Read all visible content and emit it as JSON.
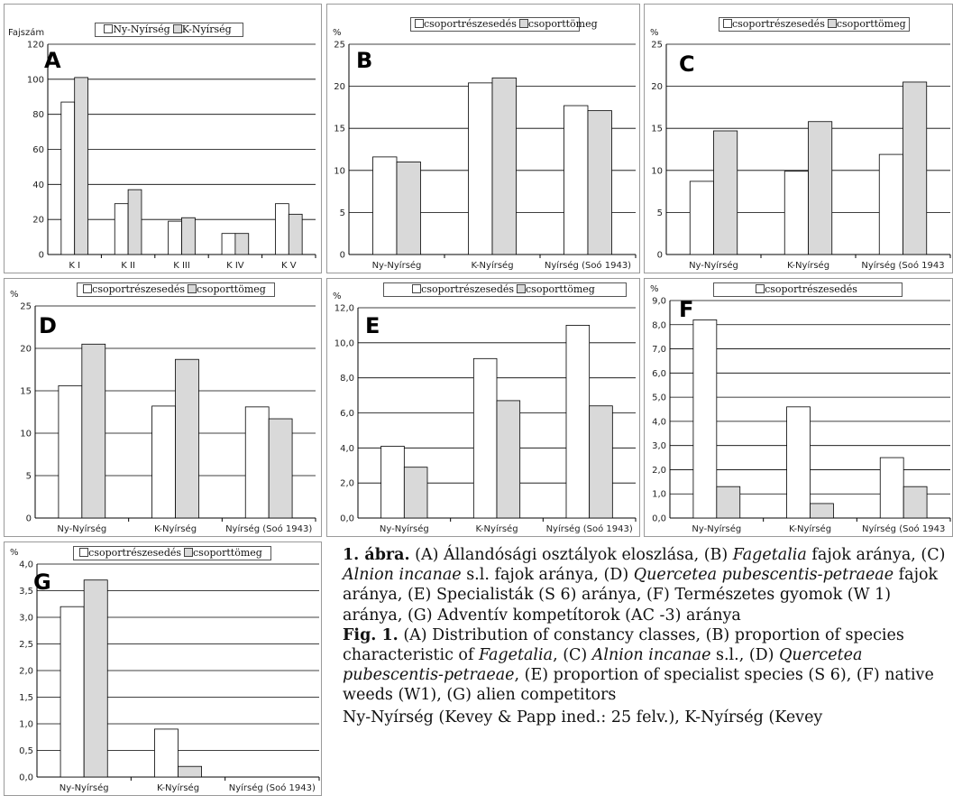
{
  "chart_data": [
    {
      "id": "A",
      "type": "bar",
      "letter": "A",
      "ylabel": "Fajszám",
      "legend": [
        "Ny-Nyírség",
        "K-Nyírség"
      ],
      "categories": [
        "K I",
        "K II",
        "K III",
        "K IV",
        "K V"
      ],
      "series": [
        {
          "name": "Ny-Nyírség",
          "values": [
            87,
            29,
            19,
            12,
            29
          ]
        },
        {
          "name": "K-Nyírség",
          "values": [
            101,
            37,
            21,
            12,
            23
          ]
        }
      ],
      "ylim": [
        0,
        120
      ],
      "yticks": [
        "0",
        "20",
        "40",
        "60",
        "80",
        "100",
        "120"
      ],
      "grid": true
    },
    {
      "id": "B",
      "type": "bar",
      "letter": "B",
      "ylabel": "%",
      "legend": [
        "csoportrészesedés",
        "csoporttömeg"
      ],
      "categories": [
        "Ny-Nyírség",
        "K-Nyírség",
        "Nyírség (Soó 1943)"
      ],
      "series": [
        {
          "name": "csoportrészesedés",
          "values": [
            11.6,
            20.4,
            17.7
          ]
        },
        {
          "name": "csoporttömeg",
          "values": [
            11.0,
            21.0,
            17.1
          ]
        }
      ],
      "ylim": [
        0,
        25
      ],
      "yticks": [
        "0",
        "5",
        "10",
        "15",
        "20",
        "25"
      ],
      "grid": true
    },
    {
      "id": "C",
      "type": "bar",
      "letter": "C",
      "ylabel": "%",
      "legend": [
        "csoportrészesedés",
        "csoporttömeg"
      ],
      "categories": [
        "Ny-Nyírség",
        "K-Nyírség",
        "Nyírség (Soó 1943"
      ],
      "series": [
        {
          "name": "csoportrészesedés",
          "values": [
            8.7,
            9.9,
            11.9
          ]
        },
        {
          "name": "csoporttömeg",
          "values": [
            14.7,
            15.8,
            20.5
          ]
        }
      ],
      "ylim": [
        0,
        25
      ],
      "yticks": [
        "0",
        "5",
        "10",
        "15",
        "20",
        "25"
      ],
      "grid": true
    },
    {
      "id": "D",
      "type": "bar",
      "letter": "D",
      "ylabel": "%",
      "legend": [
        "csoportrészesedés",
        "csoporttömeg"
      ],
      "categories": [
        "Ny-Nyírség",
        "K-Nyírség",
        "Nyírség (Soó 1943)"
      ],
      "series": [
        {
          "name": "csoportrészesedés",
          "values": [
            15.6,
            13.2,
            13.1
          ]
        },
        {
          "name": "csoporttömeg",
          "values": [
            20.5,
            18.7,
            11.7
          ]
        }
      ],
      "ylim": [
        0,
        25
      ],
      "yticks": [
        "0",
        "5",
        "10",
        "15",
        "20",
        "25"
      ],
      "grid": true
    },
    {
      "id": "E",
      "type": "bar",
      "letter": "E",
      "ylabel": "%",
      "legend": [
        "csoportrészesedés",
        "csoporttömeg"
      ],
      "categories": [
        "Ny-Nyírség",
        "K-Nyírség",
        "Nyírség (Soó 1943)"
      ],
      "series": [
        {
          "name": "csoportrészesedés",
          "values": [
            4.1,
            9.1,
            11.0
          ]
        },
        {
          "name": "csoporttömeg",
          "values": [
            2.9,
            6.7,
            6.4
          ]
        }
      ],
      "ylim": [
        0,
        12
      ],
      "yticks": [
        "0,0",
        "2,0",
        "4,0",
        "6,0",
        "8,0",
        "10,0",
        "12,0"
      ],
      "grid": true
    },
    {
      "id": "F",
      "type": "bar",
      "letter": "F",
      "ylabel": "%",
      "legend": [
        "csoportrészesedés"
      ],
      "categories": [
        "Ny-Nyírség",
        "K-Nyírség",
        "Nyírség (Soó 1943"
      ],
      "series": [
        {
          "name": "csoportrészesedés",
          "values": [
            8.2,
            4.6,
            2.5
          ]
        },
        {
          "values": [
            1.3,
            0.6,
            1.3
          ]
        }
      ],
      "ylim": [
        0,
        9
      ],
      "yticks": [
        "0,0",
        "1,0",
        "2,0",
        "3,0",
        "4,0",
        "5,0",
        "6,0",
        "7,0",
        "8,0",
        "9,0"
      ],
      "grid": true
    },
    {
      "id": "G",
      "type": "bar",
      "letter": "G",
      "ylabel": "%",
      "legend": [
        "csoportrészesedés",
        "csoporttömeg"
      ],
      "categories": [
        "Ny-Nyírség",
        "K-Nyírség",
        "Nyírség (Soó 1943)"
      ],
      "series": [
        {
          "name": "csoportrészesedés",
          "values": [
            3.2,
            0.9,
            0
          ]
        },
        {
          "name": "csoporttömeg",
          "values": [
            3.7,
            0.2,
            0
          ]
        }
      ],
      "ylim": [
        0,
        4
      ],
      "yticks": [
        "0,0",
        "0,5",
        "1,0",
        "1,5",
        "2,0",
        "2,5",
        "3,0",
        "3,5",
        "4,0"
      ],
      "grid": true
    }
  ],
  "caption": {
    "hu_label": "1. ábra.",
    "hu_parts": [
      {
        "t": " (A) Állandósági osztályok eloszlása, (B) ",
        "i": false
      },
      {
        "t": "Fagetalia",
        "i": true
      },
      {
        "t": " fajok aránya, (C) ",
        "i": false
      },
      {
        "t": "Alnion incanae",
        "i": true
      },
      {
        "t": " s.l. fajok aránya, (D) ",
        "i": false
      },
      {
        "t": "Quercetea pubescentis-petraeae",
        "i": true
      },
      {
        "t": " fajok aránya, (E) Specialisták (S 6) aránya, (F) Természetes gyomok (W 1) aránya, (G) Adventív kompetítorok (AC -3) aránya",
        "i": false
      }
    ],
    "en_label": "Fig. 1.",
    "en_parts": [
      {
        "t": " (A) Distribution of constancy classes, (B) proportion of species characteristic of ",
        "i": false
      },
      {
        "t": "Fagetalia",
        "i": true
      },
      {
        "t": ", (C) ",
        "i": false
      },
      {
        "t": "Alnion incanae",
        "i": true
      },
      {
        "t": " s.l., (D) ",
        "i": false
      },
      {
        "t": "Quercetea pubescentis-petraeae",
        "i": true
      },
      {
        "t": ", (E) proportion of specialist species (S 6), (F) native weeds (W1), (G) alien competitors",
        "i": false
      }
    ],
    "tail": "Ny-Nyírség (Kevey & Papp ined.: 25 felv.), K-Nyírség (Kevey"
  }
}
